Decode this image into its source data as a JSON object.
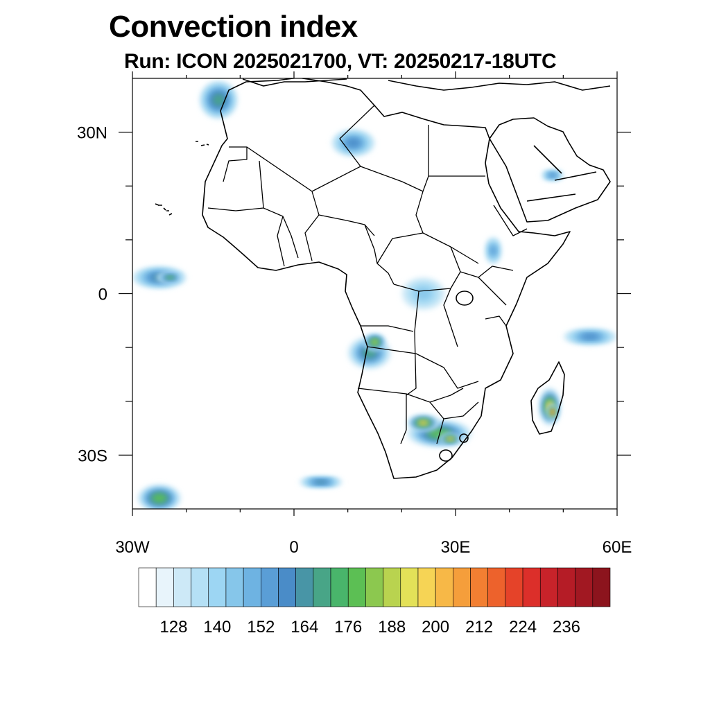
{
  "title": "Convection index",
  "subtitle": "Run: ICON 2025021700,  VT: 20250217-18UTC",
  "map": {
    "lon_range": [
      -30,
      60
    ],
    "lat_range": [
      -40,
      40
    ],
    "x_ticks": [
      {
        "value": -30,
        "label": "30W"
      },
      {
        "value": 0,
        "label": "0"
      },
      {
        "value": 30,
        "label": "30E"
      },
      {
        "value": 60,
        "label": "60E"
      }
    ],
    "y_ticks": [
      {
        "value": 30,
        "label": "30N"
      },
      {
        "value": 0,
        "label": "0"
      },
      {
        "value": -30,
        "label": "30S"
      }
    ],
    "minor_x": [
      -20,
      -10,
      10,
      20,
      40,
      50
    ],
    "minor_y": [
      20,
      10,
      -10,
      -20
    ]
  },
  "colorbar": {
    "colors": [
      "#ffffff",
      "#e8f4fb",
      "#cde9f7",
      "#b5e0f5",
      "#9dd6f3",
      "#86c6ea",
      "#6eb3e2",
      "#5a9ed6",
      "#4a8cc8",
      "#4895a6",
      "#48a587",
      "#49b56b",
      "#5cbf54",
      "#8cc84f",
      "#b9d34f",
      "#e3e158",
      "#f6d455",
      "#f7b847",
      "#f59e3b",
      "#f27f32",
      "#ed622c",
      "#e54329",
      "#dc2f2a",
      "#c8232a",
      "#b51c26",
      "#a11822",
      "#8c141d"
    ],
    "labels": [
      "128",
      "140",
      "152",
      "164",
      "176",
      "188",
      "200",
      "212",
      "224",
      "236"
    ]
  },
  "convection_cells": [
    {
      "lon": -25,
      "lat": 3,
      "rx": 5,
      "ry": 2,
      "level": 8
    },
    {
      "lon": -23,
      "lat": 3,
      "rx": 2.5,
      "ry": 1,
      "level": 11
    },
    {
      "lon": -14,
      "lat": 36,
      "rx": 3.5,
      "ry": 3.5,
      "level": 9
    },
    {
      "lon": 11,
      "lat": 28,
      "rx": 4,
      "ry": 2.5,
      "level": 7
    },
    {
      "lon": 14,
      "lat": -11,
      "rx": 4,
      "ry": 3,
      "level": 10
    },
    {
      "lon": 15,
      "lat": -9,
      "rx": 2,
      "ry": 1.5,
      "level": 14
    },
    {
      "lon": 27,
      "lat": -26,
      "rx": 6,
      "ry": 2.5,
      "level": 12
    },
    {
      "lon": 24,
      "lat": -24,
      "rx": 3,
      "ry": 1.5,
      "level": 16
    },
    {
      "lon": 29,
      "lat": -27,
      "rx": 2,
      "ry": 1,
      "level": 17
    },
    {
      "lon": 47.5,
      "lat": -21,
      "rx": 2,
      "ry": 3.5,
      "level": 16
    },
    {
      "lon": 48,
      "lat": -22,
      "rx": 1,
      "ry": 1.5,
      "level": 21
    },
    {
      "lon": 55,
      "lat": -8,
      "rx": 5,
      "ry": 1.5,
      "level": 7
    },
    {
      "lon": -25,
      "lat": -38,
      "rx": 4,
      "ry": 2.5,
      "level": 12
    },
    {
      "lon": 5,
      "lat": -35,
      "rx": 4,
      "ry": 1,
      "level": 8
    },
    {
      "lon": 37,
      "lat": 8,
      "rx": 1.5,
      "ry": 2.5,
      "level": 6
    },
    {
      "lon": 48,
      "lat": 22,
      "rx": 2,
      "ry": 1,
      "level": 7
    },
    {
      "lon": 24,
      "lat": 0,
      "rx": 4,
      "ry": 3,
      "level": 4
    }
  ]
}
